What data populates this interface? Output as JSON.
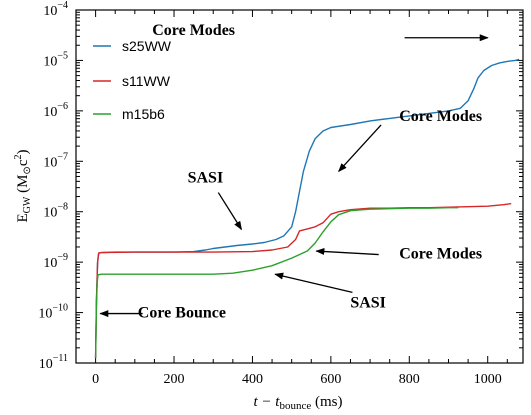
{
  "chart_data": {
    "type": "line",
    "title": "",
    "xlabel": {
      "pre": "t − t",
      "sub": "bounce",
      "post": "  (ms)"
    },
    "ylabel": {
      "pre": "E",
      "sub": "GW",
      "post": "  (M",
      "sub2": "⊙",
      "post2": "c",
      "sup": "2",
      "end": ")"
    },
    "xlim": [
      -50,
      1090
    ],
    "ylim_log10": [
      -11,
      -4
    ],
    "y_scale": "log",
    "x_ticks": [
      0,
      200,
      400,
      600,
      800,
      1000
    ],
    "x_tick_labels": [
      "0",
      "200",
      "400",
      "600",
      "800",
      "1000"
    ],
    "y_ticks_log10": [
      -11,
      -10,
      -9,
      -8,
      -7,
      -6,
      -5,
      -4
    ],
    "y_tick_labels": [
      {
        "base": "10",
        "exp": "−11"
      },
      {
        "base": "10",
        "exp": "−10"
      },
      {
        "base": "10",
        "exp": "−9"
      },
      {
        "base": "10",
        "exp": "−8"
      },
      {
        "base": "10",
        "exp": "−7"
      },
      {
        "base": "10",
        "exp": "−6"
      },
      {
        "base": "10",
        "exp": "−5"
      },
      {
        "base": "10",
        "exp": "−4"
      }
    ],
    "legend_position": "top-left",
    "grid": false,
    "series": [
      {
        "name": "s25WW",
        "color": "#1f77b4",
        "points": [
          [
            0,
            -10.9
          ],
          [
            2,
            -9.8
          ],
          [
            5,
            -9.0
          ],
          [
            8,
            -8.82
          ],
          [
            15,
            -8.81
          ],
          [
            50,
            -8.8
          ],
          [
            100,
            -8.8
          ],
          [
            150,
            -8.8
          ],
          [
            200,
            -8.8
          ],
          [
            250,
            -8.79
          ],
          [
            280,
            -8.76
          ],
          [
            300,
            -8.73
          ],
          [
            330,
            -8.7
          ],
          [
            360,
            -8.67
          ],
          [
            400,
            -8.64
          ],
          [
            430,
            -8.61
          ],
          [
            460,
            -8.55
          ],
          [
            480,
            -8.48
          ],
          [
            500,
            -8.3
          ],
          [
            510,
            -8.0
          ],
          [
            520,
            -7.6
          ],
          [
            530,
            -7.2
          ],
          [
            545,
            -6.8
          ],
          [
            560,
            -6.55
          ],
          [
            580,
            -6.4
          ],
          [
            600,
            -6.33
          ],
          [
            650,
            -6.27
          ],
          [
            700,
            -6.2
          ],
          [
            750,
            -6.15
          ],
          [
            800,
            -6.1
          ],
          [
            850,
            -6.05
          ],
          [
            900,
            -6.0
          ],
          [
            930,
            -5.95
          ],
          [
            950,
            -5.8
          ],
          [
            965,
            -5.55
          ],
          [
            975,
            -5.35
          ],
          [
            990,
            -5.2
          ],
          [
            1010,
            -5.1
          ],
          [
            1030,
            -5.05
          ],
          [
            1050,
            -5.02
          ],
          [
            1070,
            -5.0
          ],
          [
            1080,
            -4.98
          ]
        ]
      },
      {
        "name": "s11WW",
        "color": "#d62728",
        "points": [
          [
            0,
            -10.9
          ],
          [
            2,
            -9.8
          ],
          [
            5,
            -9.0
          ],
          [
            8,
            -8.82
          ],
          [
            15,
            -8.81
          ],
          [
            100,
            -8.8
          ],
          [
            200,
            -8.8
          ],
          [
            300,
            -8.8
          ],
          [
            400,
            -8.79
          ],
          [
            450,
            -8.76
          ],
          [
            490,
            -8.7
          ],
          [
            510,
            -8.55
          ],
          [
            520,
            -8.38
          ],
          [
            540,
            -8.34
          ],
          [
            560,
            -8.3
          ],
          [
            580,
            -8.22
          ],
          [
            600,
            -8.05
          ],
          [
            620,
            -8.0
          ],
          [
            650,
            -7.96
          ],
          [
            700,
            -7.93
          ],
          [
            750,
            -7.93
          ],
          [
            800,
            -7.92
          ],
          [
            850,
            -7.92
          ],
          [
            900,
            -7.91
          ],
          [
            950,
            -7.9
          ],
          [
            1000,
            -7.89
          ],
          [
            1040,
            -7.86
          ],
          [
            1060,
            -7.84
          ]
        ]
      },
      {
        "name": "m15b6",
        "color": "#2ca02c",
        "points": [
          [
            0,
            -10.9
          ],
          [
            2,
            -9.9
          ],
          [
            4,
            -9.4
          ],
          [
            6,
            -9.25
          ],
          [
            15,
            -9.24
          ],
          [
            100,
            -9.24
          ],
          [
            200,
            -9.24
          ],
          [
            300,
            -9.24
          ],
          [
            350,
            -9.22
          ],
          [
            400,
            -9.16
          ],
          [
            450,
            -9.07
          ],
          [
            500,
            -8.92
          ],
          [
            540,
            -8.78
          ],
          [
            560,
            -8.62
          ],
          [
            580,
            -8.4
          ],
          [
            600,
            -8.2
          ],
          [
            620,
            -8.06
          ],
          [
            650,
            -7.98
          ],
          [
            700,
            -7.95
          ],
          [
            750,
            -7.94
          ],
          [
            800,
            -7.93
          ],
          [
            850,
            -7.93
          ],
          [
            900,
            -7.92
          ],
          [
            925,
            -7.92
          ]
        ]
      }
    ],
    "annotations": [
      {
        "text": "Core Modes",
        "label_at": [
          250,
          -4.5
        ],
        "arrow_from": [
          788,
          -4.55
        ],
        "arrow_to": [
          1000,
          -4.55
        ],
        "anchor": "middle"
      },
      {
        "text": "Core Modes",
        "label_at": [
          880,
          -6.2
        ],
        "arrow_from": [
          728,
          -6.28
        ],
        "arrow_to": [
          620,
          -7.2
        ],
        "anchor": "middle"
      },
      {
        "text": "SASI",
        "label_at": [
          280,
          -7.42
        ],
        "arrow_from": [
          313,
          -7.62
        ],
        "arrow_to": [
          372,
          -8.35
        ],
        "anchor": "middle"
      },
      {
        "text": "Core Modes",
        "label_at": [
          880,
          -8.93
        ],
        "arrow_from": [
          722,
          -8.85
        ],
        "arrow_to": [
          563,
          -8.78
        ],
        "anchor": "middle"
      },
      {
        "text": "SASI",
        "label_at": [
          695,
          -9.9
        ],
        "arrow_from": [
          655,
          -9.6
        ],
        "arrow_to": [
          458,
          -9.24
        ],
        "anchor": "middle"
      },
      {
        "text": "Core Bounce",
        "label_at": [
          220,
          -10.1
        ],
        "arrow_from": [
          120,
          -10.02
        ],
        "arrow_to": [
          12,
          -10.02
        ],
        "anchor": "middle"
      }
    ]
  }
}
